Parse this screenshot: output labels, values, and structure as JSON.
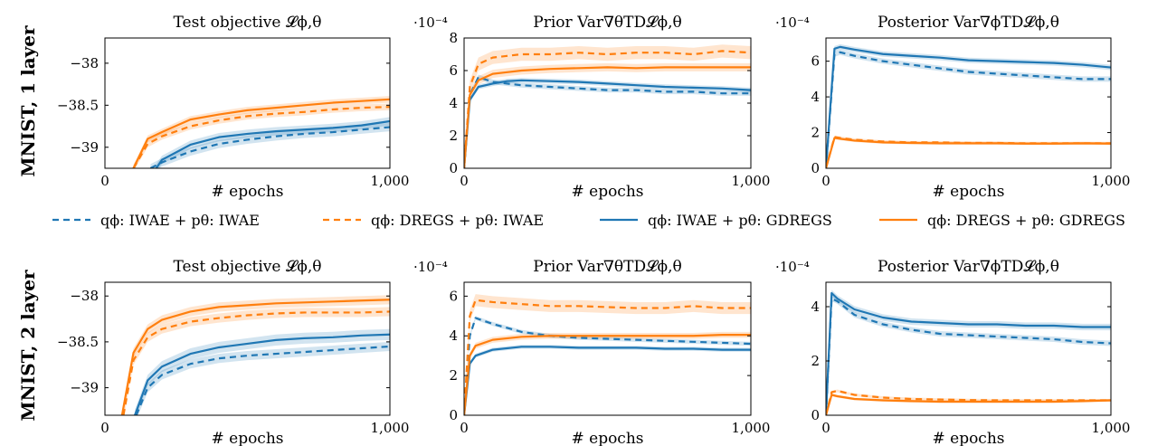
{
  "legend": [
    {
      "key": "iwae_iwae",
      "color": "#1f77b4",
      "dash": true,
      "text": "qϕ: IWAE + pθ: IWAE"
    },
    {
      "key": "dregs_iwae",
      "color": "#ff7f0e",
      "dash": true,
      "text": "qϕ: DREGS + pθ: IWAE"
    },
    {
      "key": "iwae_gdregs",
      "color": "#1f77b4",
      "dash": false,
      "text": "qϕ: IWAE + pθ: GDREGS"
    },
    {
      "key": "dregs_gdregs",
      "color": "#ff7f0e",
      "dash": false,
      "text": "qϕ: DREGS + pθ: GDREGS"
    }
  ],
  "rows": [
    {
      "label": "MNIST, 1 layer"
    },
    {
      "label": "MNIST, 2 layer"
    }
  ],
  "chart_data": [
    {
      "type": "line",
      "row": 0,
      "col": 0,
      "title": "Test objective 𝓛ϕ,θ",
      "xlabel": "# epochs",
      "ylabel": "",
      "multiplier": "",
      "xlim": [
        0,
        1000
      ],
      "ylim": [
        -39.25,
        -37.7
      ],
      "xticks": [
        0,
        1000
      ],
      "xtick_labels": [
        "0",
        "1,000"
      ],
      "yticks": [
        -39,
        -38.5,
        -38
      ],
      "ytick_labels": [
        "−39",
        "−38.5",
        "−38"
      ],
      "series": [
        {
          "key": "iwae_iwae",
          "color": "#1f77b4",
          "dash": true,
          "band": 0.05,
          "x": [
            160,
            200,
            300,
            400,
            500,
            600,
            700,
            800,
            900,
            1000
          ],
          "y": [
            -39.25,
            -39.18,
            -39.05,
            -38.96,
            -38.91,
            -38.87,
            -38.84,
            -38.82,
            -38.79,
            -38.76
          ]
        },
        {
          "key": "dregs_iwae",
          "color": "#ff7f0e",
          "dash": true,
          "band": 0.04,
          "x": [
            100,
            150,
            200,
            300,
            400,
            500,
            600,
            700,
            800,
            900,
            1000
          ],
          "y": [
            -39.25,
            -38.96,
            -38.87,
            -38.75,
            -38.68,
            -38.63,
            -38.6,
            -38.58,
            -38.55,
            -38.53,
            -38.52
          ]
        },
        {
          "key": "iwae_gdregs",
          "color": "#1f77b4",
          "dash": false,
          "band": 0.05,
          "x": [
            180,
            200,
            300,
            400,
            500,
            600,
            700,
            800,
            900,
            1000
          ],
          "y": [
            -39.25,
            -39.15,
            -38.97,
            -38.88,
            -38.84,
            -38.81,
            -38.79,
            -38.77,
            -38.74,
            -38.69
          ]
        },
        {
          "key": "dregs_gdregs",
          "color": "#ff7f0e",
          "dash": false,
          "band": 0.04,
          "x": [
            100,
            150,
            200,
            300,
            400,
            500,
            600,
            700,
            800,
            900,
            1000
          ],
          "y": [
            -39.25,
            -38.9,
            -38.82,
            -38.67,
            -38.61,
            -38.56,
            -38.53,
            -38.5,
            -38.47,
            -38.45,
            -38.43
          ]
        }
      ]
    },
    {
      "type": "line",
      "row": 0,
      "col": 1,
      "title": "Prior Var∇θTD𝓛ϕ,θ",
      "xlabel": "# epochs",
      "ylabel": "",
      "multiplier": "·10⁻⁴",
      "xlim": [
        0,
        1000
      ],
      "ylim": [
        0,
        8
      ],
      "xticks": [
        0,
        1000
      ],
      "xtick_labels": [
        "0",
        "1,000"
      ],
      "yticks": [
        0,
        2,
        4,
        6,
        8
      ],
      "ytick_labels": [
        "0",
        "2",
        "4",
        "6",
        "8"
      ],
      "series": [
        {
          "key": "iwae_iwae",
          "color": "#1f77b4",
          "dash": true,
          "band": 0.15,
          "x": [
            0,
            20,
            50,
            100,
            150,
            200,
            300,
            400,
            500,
            600,
            700,
            800,
            900,
            1000
          ],
          "y": [
            0,
            4.5,
            5.6,
            5.3,
            5.2,
            5.1,
            5.0,
            4.9,
            4.8,
            4.8,
            4.7,
            4.7,
            4.6,
            4.6
          ]
        },
        {
          "key": "dregs_iwae",
          "color": "#ff7f0e",
          "dash": true,
          "band": 0.4,
          "x": [
            0,
            20,
            50,
            100,
            150,
            200,
            300,
            400,
            500,
            600,
            700,
            800,
            900,
            1000
          ],
          "y": [
            0,
            5.0,
            6.4,
            6.8,
            6.9,
            7.0,
            7.0,
            7.1,
            7.0,
            7.1,
            7.1,
            7.0,
            7.2,
            7.1
          ]
        },
        {
          "key": "iwae_gdregs",
          "color": "#1f77b4",
          "dash": false,
          "band": 0.15,
          "x": [
            0,
            20,
            50,
            100,
            150,
            200,
            300,
            400,
            500,
            600,
            700,
            800,
            900,
            1000
          ],
          "y": [
            0,
            4.2,
            5.0,
            5.2,
            5.35,
            5.4,
            5.35,
            5.3,
            5.2,
            5.1,
            5.0,
            4.95,
            4.9,
            4.8
          ]
        },
        {
          "key": "dregs_gdregs",
          "color": "#ff7f0e",
          "dash": false,
          "band": 0.25,
          "x": [
            0,
            20,
            50,
            100,
            150,
            200,
            300,
            400,
            500,
            600,
            700,
            800,
            900,
            1000
          ],
          "y": [
            0,
            4.5,
            5.4,
            5.8,
            5.9,
            6.0,
            6.1,
            6.15,
            6.2,
            6.15,
            6.2,
            6.2,
            6.2,
            6.2
          ]
        }
      ]
    },
    {
      "type": "line",
      "row": 0,
      "col": 2,
      "title": "Posterior Var∇ϕTD𝓛ϕ,θ",
      "xlabel": "# epochs",
      "ylabel": "",
      "multiplier": "·10⁻⁴",
      "xlim": [
        0,
        1000
      ],
      "ylim": [
        0,
        7.3
      ],
      "xticks": [
        0,
        1000
      ],
      "xtick_labels": [
        "0",
        "1,000"
      ],
      "yticks": [
        0,
        2,
        4,
        6
      ],
      "ytick_labels": [
        "0",
        "2",
        "4",
        "6"
      ],
      "series": [
        {
          "key": "iwae_iwae",
          "color": "#1f77b4",
          "dash": true,
          "band": 0.15,
          "x": [
            0,
            30,
            50,
            100,
            200,
            300,
            400,
            500,
            600,
            700,
            800,
            900,
            1000
          ],
          "y": [
            0,
            6.4,
            6.5,
            6.3,
            6.0,
            5.8,
            5.6,
            5.4,
            5.3,
            5.2,
            5.1,
            5.0,
            5.0
          ]
        },
        {
          "key": "dregs_iwae",
          "color": "#ff7f0e",
          "dash": true,
          "band": 0.08,
          "x": [
            0,
            30,
            50,
            100,
            200,
            300,
            400,
            500,
            600,
            700,
            800,
            900,
            1000
          ],
          "y": [
            0,
            1.75,
            1.7,
            1.6,
            1.5,
            1.45,
            1.45,
            1.42,
            1.42,
            1.4,
            1.4,
            1.4,
            1.4
          ]
        },
        {
          "key": "iwae_gdregs",
          "color": "#1f77b4",
          "dash": false,
          "band": 0.15,
          "x": [
            0,
            30,
            50,
            100,
            200,
            300,
            400,
            500,
            600,
            700,
            800,
            900,
            1000
          ],
          "y": [
            0,
            6.7,
            6.8,
            6.65,
            6.4,
            6.3,
            6.2,
            6.05,
            6.0,
            5.95,
            5.9,
            5.8,
            5.65
          ]
        },
        {
          "key": "dregs_gdregs",
          "color": "#ff7f0e",
          "dash": false,
          "band": 0.08,
          "x": [
            0,
            30,
            50,
            100,
            200,
            300,
            400,
            500,
            600,
            700,
            800,
            900,
            1000
          ],
          "y": [
            0,
            1.7,
            1.65,
            1.55,
            1.45,
            1.42,
            1.4,
            1.4,
            1.4,
            1.38,
            1.38,
            1.4,
            1.38
          ]
        }
      ]
    },
    {
      "type": "line",
      "row": 1,
      "col": 0,
      "title": "Test objective 𝓛ϕ,θ",
      "xlabel": "# epochs",
      "ylabel": "",
      "multiplier": "",
      "xlim": [
        0,
        1000
      ],
      "ylim": [
        -39.3,
        -37.85
      ],
      "xticks": [
        0,
        1000
      ],
      "xtick_labels": [
        "0",
        "1,000"
      ],
      "yticks": [
        -39,
        -38.5,
        -38
      ],
      "ytick_labels": [
        "−39",
        "−38.5",
        "−38"
      ],
      "series": [
        {
          "key": "iwae_iwae",
          "color": "#1f77b4",
          "dash": true,
          "band": 0.05,
          "x": [
            110,
            150,
            200,
            300,
            400,
            500,
            600,
            700,
            800,
            900,
            1000
          ],
          "y": [
            -39.3,
            -39.0,
            -38.86,
            -38.74,
            -38.68,
            -38.65,
            -38.63,
            -38.61,
            -38.59,
            -38.57,
            -38.55
          ]
        },
        {
          "key": "dregs_iwae",
          "color": "#ff7f0e",
          "dash": true,
          "band": 0.05,
          "x": [
            65,
            100,
            150,
            200,
            300,
            400,
            500,
            600,
            700,
            800,
            900,
            1000
          ],
          "y": [
            -39.3,
            -38.7,
            -38.45,
            -38.36,
            -38.28,
            -38.24,
            -38.21,
            -38.19,
            -38.18,
            -38.18,
            -38.18,
            -38.17
          ]
        },
        {
          "key": "iwae_gdregs",
          "color": "#1f77b4",
          "dash": false,
          "band": 0.06,
          "x": [
            105,
            150,
            200,
            300,
            400,
            500,
            600,
            700,
            800,
            900,
            1000
          ],
          "y": [
            -39.3,
            -38.92,
            -38.77,
            -38.63,
            -38.56,
            -38.52,
            -38.48,
            -38.46,
            -38.45,
            -38.43,
            -38.42
          ]
        },
        {
          "key": "dregs_gdregs",
          "color": "#ff7f0e",
          "dash": false,
          "band": 0.05,
          "x": [
            60,
            100,
            150,
            200,
            300,
            400,
            500,
            600,
            700,
            800,
            900,
            1000
          ],
          "y": [
            -39.3,
            -38.62,
            -38.36,
            -38.26,
            -38.17,
            -38.12,
            -38.1,
            -38.08,
            -38.07,
            -38.06,
            -38.05,
            -38.04
          ]
        }
      ]
    },
    {
      "type": "line",
      "row": 1,
      "col": 1,
      "title": "Prior Var∇θTD𝓛ϕ,θ",
      "xlabel": "# epochs",
      "ylabel": "",
      "multiplier": "·10⁻⁴",
      "xlim": [
        0,
        1000
      ],
      "ylim": [
        0,
        6.7
      ],
      "xticks": [
        0,
        1000
      ],
      "xtick_labels": [
        "0",
        "1,000"
      ],
      "yticks": [
        0,
        2,
        4,
        6
      ],
      "ytick_labels": [
        "0",
        "2",
        "4",
        "6"
      ],
      "series": [
        {
          "key": "iwae_iwae",
          "color": "#1f77b4",
          "dash": true,
          "band": 0.1,
          "x": [
            0,
            20,
            40,
            100,
            200,
            300,
            400,
            500,
            600,
            700,
            800,
            900,
            1000
          ],
          "y": [
            0,
            4.0,
            4.9,
            4.6,
            4.2,
            4.0,
            3.9,
            3.85,
            3.8,
            3.75,
            3.7,
            3.65,
            3.6
          ]
        },
        {
          "key": "dregs_iwae",
          "color": "#ff7f0e",
          "dash": true,
          "band": 0.3,
          "x": [
            0,
            20,
            40,
            100,
            200,
            300,
            400,
            500,
            600,
            700,
            800,
            900,
            1000
          ],
          "y": [
            0,
            5.0,
            5.8,
            5.7,
            5.6,
            5.5,
            5.5,
            5.45,
            5.4,
            5.4,
            5.5,
            5.4,
            5.4
          ]
        },
        {
          "key": "iwae_gdregs",
          "color": "#1f77b4",
          "dash": false,
          "band": 0.1,
          "x": [
            0,
            20,
            40,
            100,
            200,
            300,
            400,
            500,
            600,
            700,
            800,
            900,
            1000
          ],
          "y": [
            0,
            2.6,
            3.0,
            3.3,
            3.45,
            3.45,
            3.4,
            3.4,
            3.4,
            3.35,
            3.35,
            3.3,
            3.3
          ]
        },
        {
          "key": "dregs_gdregs",
          "color": "#ff7f0e",
          "dash": false,
          "band": 0.15,
          "x": [
            0,
            20,
            40,
            100,
            200,
            300,
            400,
            500,
            600,
            700,
            800,
            900,
            1000
          ],
          "y": [
            0,
            3.0,
            3.5,
            3.8,
            3.95,
            4.0,
            4.0,
            4.0,
            4.0,
            4.0,
            4.0,
            4.05,
            4.05
          ]
        }
      ]
    },
    {
      "type": "line",
      "row": 1,
      "col": 2,
      "title": "Posterior Var∇ϕTD𝓛ϕ,θ",
      "xlabel": "# epochs",
      "ylabel": "",
      "multiplier": "·10⁻⁴",
      "xlim": [
        0,
        1000
      ],
      "ylim": [
        0,
        4.9
      ],
      "xticks": [
        0,
        1000
      ],
      "xtick_labels": [
        "0",
        "1,000"
      ],
      "yticks": [
        0,
        2,
        4
      ],
      "ytick_labels": [
        "0",
        "2",
        "4"
      ],
      "series": [
        {
          "key": "iwae_iwae",
          "color": "#1f77b4",
          "dash": true,
          "band": 0.1,
          "x": [
            0,
            20,
            40,
            100,
            200,
            300,
            400,
            500,
            600,
            700,
            800,
            900,
            1000
          ],
          "y": [
            0,
            4.3,
            4.2,
            3.7,
            3.35,
            3.15,
            3.0,
            2.95,
            2.9,
            2.85,
            2.8,
            2.7,
            2.65
          ]
        },
        {
          "key": "dregs_iwae",
          "color": "#ff7f0e",
          "dash": true,
          "band": 0.05,
          "x": [
            0,
            20,
            40,
            100,
            200,
            300,
            400,
            500,
            600,
            700,
            800,
            900,
            1000
          ],
          "y": [
            0,
            0.85,
            0.9,
            0.75,
            0.65,
            0.6,
            0.58,
            0.56,
            0.55,
            0.55,
            0.55,
            0.55,
            0.55
          ]
        },
        {
          "key": "iwae_gdregs",
          "color": "#1f77b4",
          "dash": false,
          "band": 0.12,
          "x": [
            0,
            20,
            40,
            100,
            200,
            300,
            400,
            500,
            600,
            700,
            800,
            900,
            1000
          ],
          "y": [
            0,
            4.5,
            4.3,
            3.9,
            3.6,
            3.45,
            3.4,
            3.35,
            3.35,
            3.3,
            3.3,
            3.25,
            3.25
          ]
        },
        {
          "key": "dregs_gdregs",
          "color": "#ff7f0e",
          "dash": false,
          "band": 0.05,
          "x": [
            0,
            20,
            40,
            100,
            200,
            300,
            400,
            500,
            600,
            700,
            800,
            900,
            1000
          ],
          "y": [
            0,
            0.75,
            0.7,
            0.6,
            0.55,
            0.52,
            0.5,
            0.5,
            0.5,
            0.5,
            0.5,
            0.52,
            0.55
          ]
        }
      ]
    }
  ]
}
